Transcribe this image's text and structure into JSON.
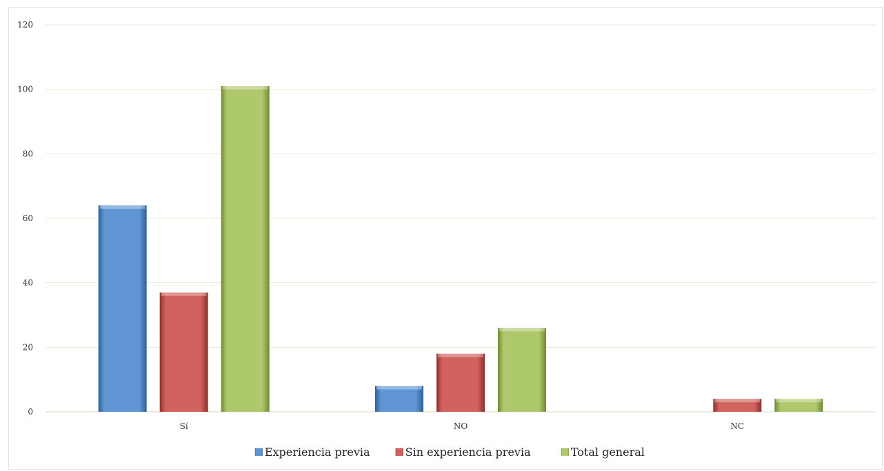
{
  "chart_data": {
    "type": "bar",
    "categories": [
      "Sí",
      "NO",
      "NC"
    ],
    "series": [
      {
        "name": "Experiencia previa",
        "values": [
          64,
          8,
          0
        ],
        "color": "#5f95d2"
      },
      {
        "name": "Sin experiencia previa",
        "values": [
          37,
          18,
          4
        ],
        "color": "#d1615c"
      },
      {
        "name": "Total general",
        "values": [
          101,
          26,
          4
        ],
        "color": "#aec96c"
      }
    ],
    "ylim": [
      0,
      120
    ],
    "yticks": [
      0,
      20,
      40,
      60,
      80,
      100,
      120
    ],
    "grid": true,
    "legend_position": "bottom"
  }
}
